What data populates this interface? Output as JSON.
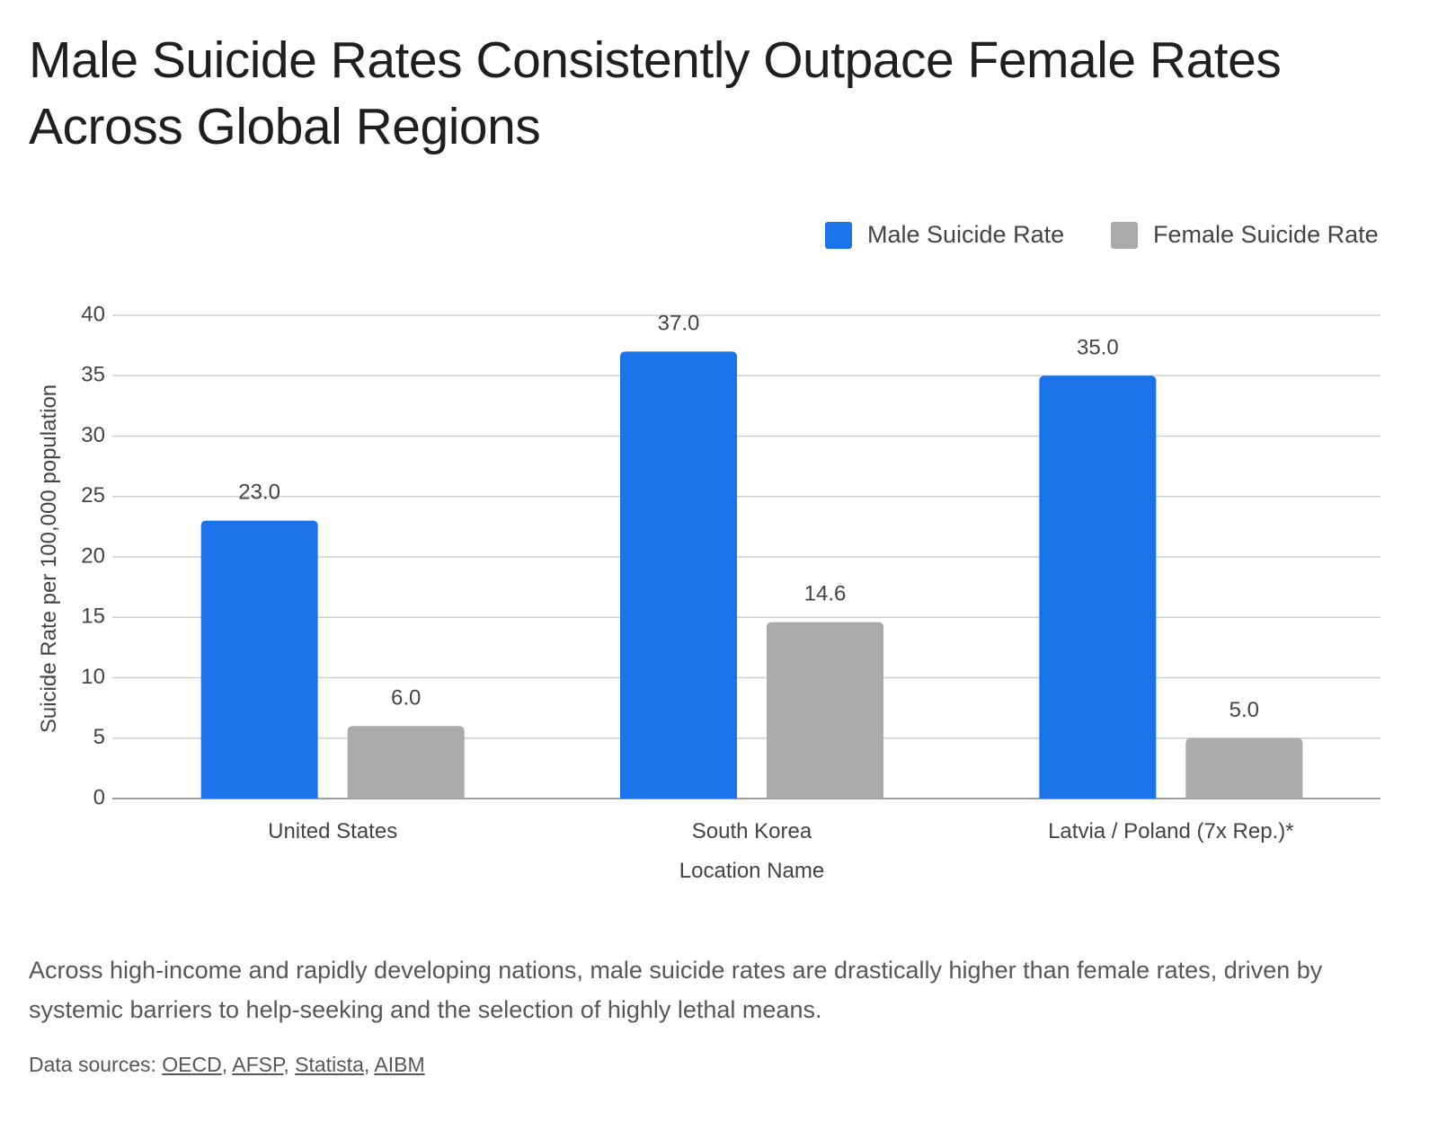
{
  "chart_data": {
    "type": "bar",
    "title": "Male Suicide Rates Consistently Outpace Female Rates Across Global Regions",
    "xlabel": "Location Name",
    "ylabel": "Suicide Rate per 100,000 population",
    "categories": [
      "United States",
      "South Korea",
      "Latvia / Poland (7x Rep.)*"
    ],
    "series": [
      {
        "name": "Male Suicide Rate",
        "values": [
          23.0,
          37.0,
          35.0
        ],
        "color": "#1a73e8"
      },
      {
        "name": "Female Suicide Rate",
        "values": [
          6.0,
          14.6,
          5.0
        ],
        "color": "#aaaaaa"
      }
    ],
    "ylim": [
      0,
      40
    ],
    "yticks": [
      "0",
      "5",
      "10",
      "15",
      "20",
      "25",
      "30",
      "35",
      "40"
    ],
    "data_labels": [
      [
        "23.0",
        "37.0",
        "35.0"
      ],
      [
        "6.0",
        "14.6",
        "5.0"
      ]
    ],
    "grid": true,
    "legend_position": "top-right"
  },
  "caption": "Across high-income and rapidly developing nations, male suicide rates are drastically higher than female rates, driven by systemic barriers to help-seeking and the selection of highly lethal means.",
  "sources": {
    "prefix": "Data sources: ",
    "links": [
      "OECD",
      "AFSP",
      "Statista",
      "AIBM"
    ]
  }
}
